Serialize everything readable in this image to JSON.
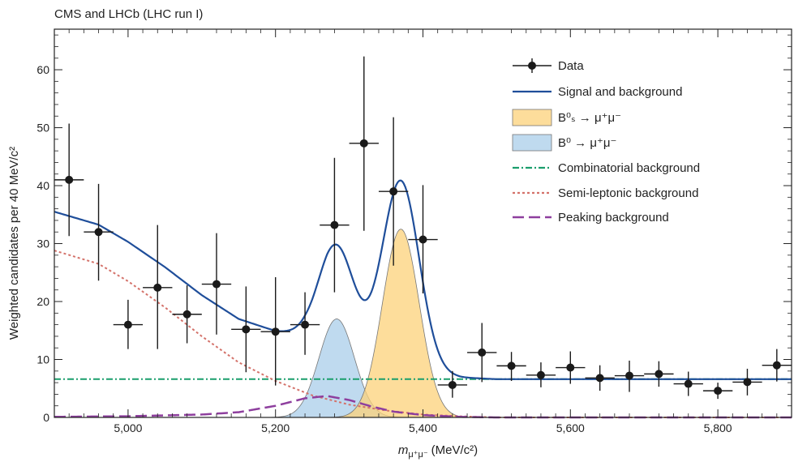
{
  "chart_data": {
    "type": "scatter",
    "title": "CMS and LHCb (LHC run I)",
    "xlabel": "(MeV/c²)",
    "xlabel_symbol": "m",
    "xlabel_subscript": "μ⁺μ⁻",
    "ylabel": "Weighted candidates per 40 MeV/c²",
    "xlim": [
      4900,
      5900
    ],
    "ylim": [
      0,
      67
    ],
    "x_ticks": [
      5000,
      5200,
      5400,
      5600,
      5800
    ],
    "x_tick_labels": [
      "5,000",
      "5,200",
      "5,400",
      "5,600",
      "5,800"
    ],
    "y_ticks": [
      0,
      10,
      20,
      30,
      40,
      50,
      60
    ],
    "y_tick_labels": [
      "0",
      "10",
      "20",
      "30",
      "40",
      "50",
      "60"
    ],
    "grid": false,
    "legend_position": "top-right",
    "colors": {
      "data": "#1a1a1a",
      "signal_background": "#1f4e9a",
      "bs": "#fcd27a",
      "b0": "#a9cdea",
      "combinatorial": "#1a9e6c",
      "semileptonic": "#d4726a",
      "peaking": "#8e3f9e"
    },
    "legend": {
      "data": "Data",
      "signal_background": "Signal and background",
      "bs": "B⁰ₛ → μ⁺μ⁻",
      "b0": "B⁰ → μ⁺μ⁻",
      "combinatorial": "Combinatorial background",
      "semileptonic": "Semi-leptonic background",
      "peaking": "Peaking background"
    },
    "data_points": [
      {
        "x": 4920,
        "y": 41,
        "ylo": 31.3,
        "yhi": 50.7
      },
      {
        "x": 4960,
        "y": 32,
        "ylo": 23.6,
        "yhi": 40.3
      },
      {
        "x": 5000,
        "y": 16,
        "ylo": 11.8,
        "yhi": 20.3
      },
      {
        "x": 5040,
        "y": 22.4,
        "ylo": 11.8,
        "yhi": 33.2
      },
      {
        "x": 5080,
        "y": 17.8,
        "ylo": 12.8,
        "yhi": 22.8
      },
      {
        "x": 5120,
        "y": 23,
        "ylo": 14.3,
        "yhi": 31.8
      },
      {
        "x": 5160,
        "y": 15.2,
        "ylo": 7.8,
        "yhi": 22.6
      },
      {
        "x": 5200,
        "y": 14.8,
        "ylo": 5.5,
        "yhi": 24.2
      },
      {
        "x": 5240,
        "y": 16,
        "ylo": 10.8,
        "yhi": 21.6
      },
      {
        "x": 5280,
        "y": 33.2,
        "ylo": 21.6,
        "yhi": 44.8
      },
      {
        "x": 5320,
        "y": 47.3,
        "ylo": 32.2,
        "yhi": 62.3
      },
      {
        "x": 5360,
        "y": 39,
        "ylo": 26.2,
        "yhi": 51.8
      },
      {
        "x": 5400,
        "y": 30.7,
        "ylo": 21.4,
        "yhi": 40.1
      },
      {
        "x": 5440,
        "y": 5.6,
        "ylo": 3.4,
        "yhi": 8
      },
      {
        "x": 5480,
        "y": 11.2,
        "ylo": 6.1,
        "yhi": 16.3
      },
      {
        "x": 5520,
        "y": 8.9,
        "ylo": 6.3,
        "yhi": 11.3
      },
      {
        "x": 5560,
        "y": 7.3,
        "ylo": 5.2,
        "yhi": 9.5
      },
      {
        "x": 5600,
        "y": 8.6,
        "ylo": 5.8,
        "yhi": 11.4
      },
      {
        "x": 5640,
        "y": 6.8,
        "ylo": 4.6,
        "yhi": 9
      },
      {
        "x": 5680,
        "y": 7.2,
        "ylo": 4.4,
        "yhi": 9.8
      },
      {
        "x": 5720,
        "y": 7.5,
        "ylo": 5.3,
        "yhi": 9.7
      },
      {
        "x": 5760,
        "y": 5.8,
        "ylo": 3.7,
        "yhi": 7.9
      },
      {
        "x": 5800,
        "y": 4.6,
        "ylo": 3.2,
        "yhi": 6
      },
      {
        "x": 5840,
        "y": 6.1,
        "ylo": 3.8,
        "yhi": 8.4
      },
      {
        "x": 5880,
        "y": 9,
        "ylo": 6.2,
        "yhi": 11.8
      }
    ],
    "x_error_half_width": 20,
    "curves": {
      "combinatorial_level": 6.6,
      "semileptonic": {
        "x": [
          4900,
          4960,
          5000,
          5050,
          5100,
          5150,
          5200,
          5250,
          5300,
          5350,
          5400,
          5450,
          5500
        ],
        "y": [
          28.8,
          26.5,
          23.5,
          19,
          14,
          9.5,
          6.3,
          3.8,
          2.2,
          1.2,
          0.5,
          0.2,
          0
        ]
      },
      "b0": {
        "mean": 5283,
        "peak": 17,
        "sigma": 24
      },
      "bs": {
        "mean": 5370,
        "peak": 32.5,
        "sigma": 25
      },
      "peaking": {
        "x": [
          4900,
          5000,
          5100,
          5150,
          5200,
          5240,
          5270,
          5300,
          5330,
          5360,
          5400,
          5450,
          5500
        ],
        "y": [
          0.1,
          0.2,
          0.5,
          0.9,
          2,
          3.3,
          3.7,
          3,
          1.9,
          1,
          0.4,
          0.1,
          0
        ]
      }
    }
  }
}
